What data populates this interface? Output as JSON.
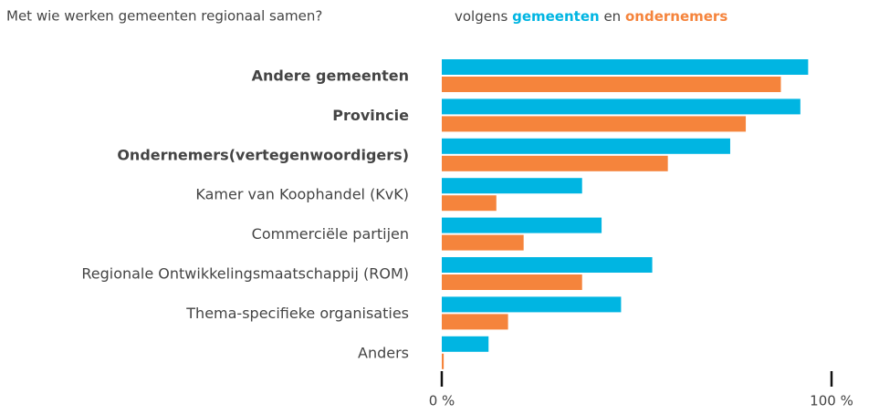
{
  "chart_data": {
    "type": "hbar",
    "title": "Met wie werken gemeenten regionaal samen?",
    "subtitle_prefix": "volgens",
    "subtitle_joiner": "en",
    "categories": [
      "Andere gemeenten",
      "Provincie",
      "Ondernemers(vertegenwoordigers)",
      "Kamer van Koophandel (KvK)",
      "Commerciële partijen",
      "Regionale Ontwikkelingsmaatschappij (ROM)",
      "Thema-specifieke organisaties",
      "Anders"
    ],
    "bold_categories": [
      true,
      true,
      true,
      false,
      false,
      false,
      false,
      false
    ],
    "series": [
      {
        "name": "gemeenten",
        "color": "#00b5e2",
        "values": [
          94,
          92,
          74,
          36,
          41,
          54,
          46,
          12
        ]
      },
      {
        "name": "ondernemers",
        "color": "#f5843c",
        "values": [
          87,
          78,
          58,
          14,
          21,
          36,
          17,
          0.5
        ]
      }
    ],
    "xlim": [
      0,
      100
    ],
    "xticks": [
      {
        "value": 0,
        "label": "0 %"
      },
      {
        "value": 100,
        "label": "100 %"
      }
    ]
  }
}
